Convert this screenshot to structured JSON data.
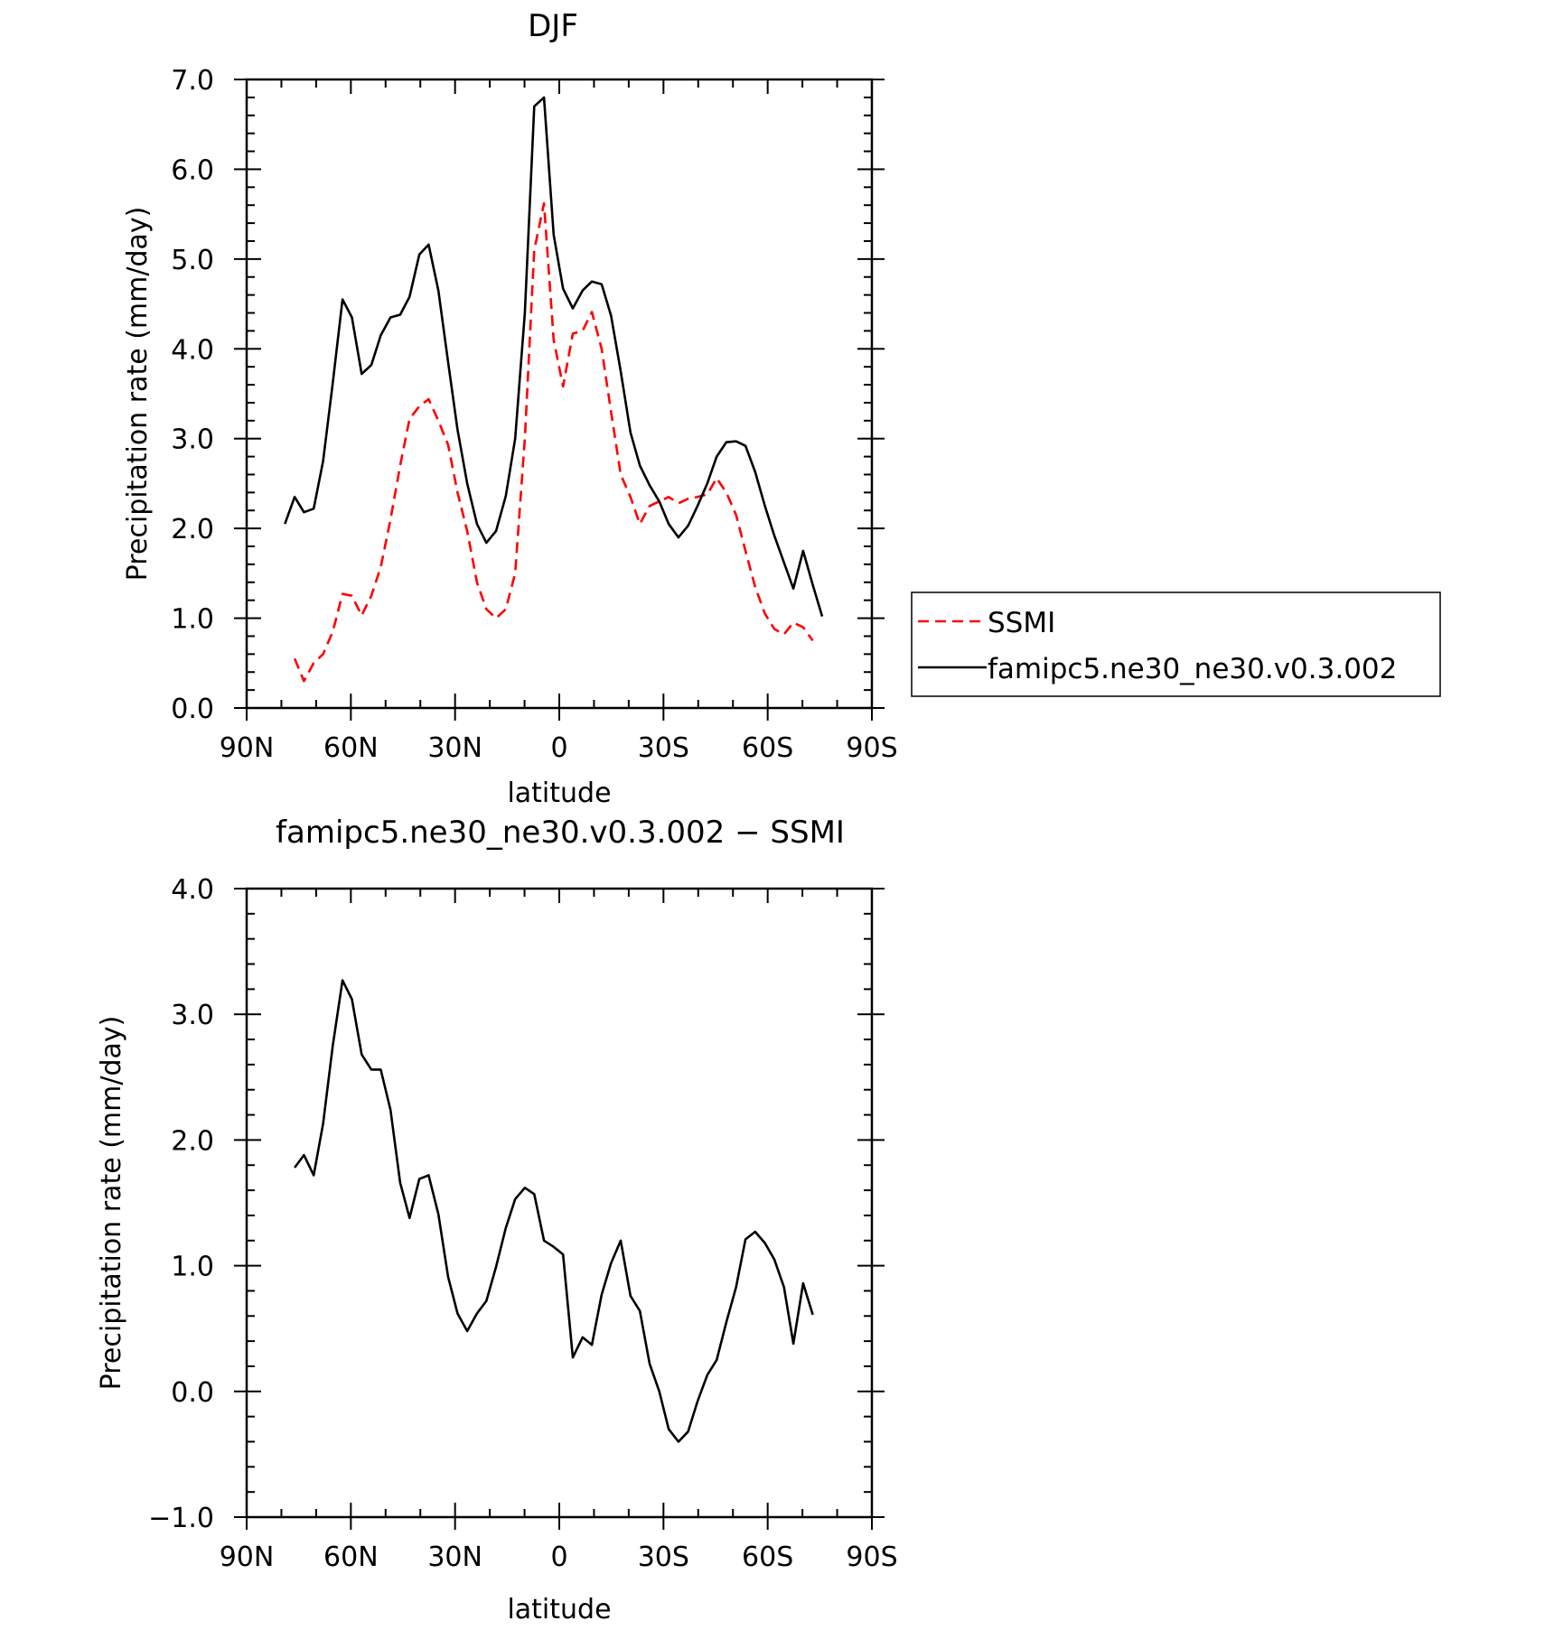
{
  "chart_data": [
    {
      "type": "line",
      "title": "DJF",
      "xlabel": "latitude",
      "ylabel": "Precipitation rate (mm/day)",
      "xlim": [
        90,
        -90
      ],
      "ylim": [
        0,
        7
      ],
      "xticks": [
        90,
        60,
        30,
        0,
        -30,
        -60,
        -90
      ],
      "xtick_labels": [
        "90N",
        "60N",
        "30N",
        "0",
        "30S",
        "60S",
        "90S"
      ],
      "yticks": [
        0,
        1,
        2,
        3,
        4,
        5,
        6,
        7
      ],
      "ytick_labels": [
        "0.0",
        "1.0",
        "2.0",
        "3.0",
        "4.0",
        "5.0",
        "6.0",
        "7.0"
      ],
      "grid": false,
      "legend_position": "right",
      "series": [
        {
          "name": "SSMI",
          "color": "#ff0000",
          "dash": "dashed",
          "x": [
            76.2,
            73.5,
            70.7,
            68.0,
            65.2,
            62.4,
            59.7,
            56.9,
            54.1,
            51.4,
            48.6,
            45.8,
            43.1,
            40.3,
            37.6,
            34.8,
            32.0,
            29.3,
            26.5,
            23.7,
            21.0,
            18.2,
            15.4,
            12.7,
            9.9,
            7.2,
            4.4,
            1.6,
            -1.1,
            -3.9,
            -6.7,
            -9.4,
            -12.2,
            -14.9,
            -17.7,
            -20.5,
            -23.2,
            -26.0,
            -28.8,
            -31.5,
            -34.3,
            -37.1,
            -39.8,
            -42.6,
            -45.3,
            -48.1,
            -50.9,
            -53.6,
            -56.4,
            -59.2,
            -61.9,
            -64.7,
            -67.4,
            -70.2,
            -73.0
          ],
          "y": [
            0.55,
            0.3,
            0.5,
            0.6,
            0.85,
            1.27,
            1.25,
            1.03,
            1.25,
            1.57,
            2.1,
            2.7,
            3.22,
            3.36,
            3.44,
            3.2,
            2.93,
            2.4,
            1.97,
            1.4,
            1.1,
            1.0,
            1.1,
            1.5,
            3.0,
            5.1,
            5.62,
            4.1,
            3.58,
            4.17,
            4.2,
            4.41,
            4.0,
            3.3,
            2.6,
            2.35,
            2.05,
            2.25,
            2.3,
            2.35,
            2.28,
            2.33,
            2.35,
            2.38,
            2.56,
            2.4,
            2.15,
            1.75,
            1.35,
            1.05,
            0.88,
            0.82,
            0.95,
            0.9,
            0.75
          ]
        },
        {
          "name": "famipc5.ne30_ne30.v0.3.002",
          "color": "#000000",
          "dash": "solid",
          "x": [
            79.0,
            76.2,
            73.5,
            70.7,
            68.0,
            65.2,
            62.4,
            59.7,
            56.9,
            54.1,
            51.4,
            48.6,
            45.8,
            43.1,
            40.3,
            37.6,
            34.8,
            32.0,
            29.3,
            26.5,
            23.7,
            21.0,
            18.2,
            15.4,
            12.7,
            9.9,
            7.2,
            4.4,
            1.6,
            -1.1,
            -3.9,
            -6.7,
            -9.4,
            -12.2,
            -14.9,
            -17.7,
            -20.5,
            -23.2,
            -26.0,
            -28.8,
            -31.5,
            -34.3,
            -37.1,
            -39.8,
            -42.6,
            -45.3,
            -48.1,
            -50.9,
            -53.6,
            -56.4,
            -59.2,
            -61.9,
            -64.7,
            -67.4,
            -70.2,
            -73.0,
            -75.7
          ],
          "y": [
            2.05,
            2.35,
            2.18,
            2.22,
            2.75,
            3.62,
            4.55,
            4.35,
            3.72,
            3.82,
            4.15,
            4.35,
            4.38,
            4.58,
            5.05,
            5.16,
            4.65,
            3.85,
            3.1,
            2.5,
            2.05,
            1.84,
            1.97,
            2.36,
            3.0,
            4.4,
            6.7,
            6.8,
            5.27,
            4.67,
            4.45,
            4.65,
            4.75,
            4.72,
            4.37,
            3.75,
            3.07,
            2.7,
            2.48,
            2.3,
            2.05,
            1.9,
            2.03,
            2.25,
            2.5,
            2.8,
            2.96,
            2.97,
            2.92,
            2.63,
            2.25,
            1.92,
            1.62,
            1.33,
            1.75,
            1.37,
            1.02
          ]
        }
      ]
    },
    {
      "type": "line",
      "title": "famipc5.ne30_ne30.v0.3.002 − SSMI",
      "xlabel": "latitude",
      "ylabel": "Precipitation rate (mm/day)",
      "xlim": [
        90,
        -90
      ],
      "ylim": [
        -1,
        4
      ],
      "xticks": [
        90,
        60,
        30,
        0,
        -30,
        -60,
        -90
      ],
      "xtick_labels": [
        "90N",
        "60N",
        "30N",
        "0",
        "30S",
        "60S",
        "90S"
      ],
      "yticks": [
        -1,
        0,
        1,
        2,
        3,
        4
      ],
      "ytick_labels": [
        "−1.0",
        "0.0",
        "1.0",
        "2.0",
        "3.0",
        "4.0"
      ],
      "grid": false,
      "series": [
        {
          "color": "#000000",
          "dash": "solid",
          "x": [
            76.2,
            73.5,
            70.7,
            68.0,
            65.2,
            62.4,
            59.7,
            56.9,
            54.1,
            51.4,
            48.6,
            45.8,
            43.1,
            40.3,
            37.6,
            34.8,
            32.0,
            29.3,
            26.5,
            23.7,
            21.0,
            18.2,
            15.4,
            12.7,
            9.9,
            7.2,
            4.4,
            1.6,
            -1.1,
            -3.9,
            -6.7,
            -9.4,
            -12.2,
            -14.9,
            -17.7,
            -20.5,
            -23.2,
            -26.0,
            -28.8,
            -31.5,
            -34.3,
            -37.1,
            -39.8,
            -42.6,
            -45.3,
            -48.1,
            -50.9,
            -53.6,
            -56.4,
            -59.2,
            -61.9,
            -64.7,
            -67.4,
            -70.2,
            -73.0
          ],
          "y": [
            1.78,
            1.88,
            1.72,
            2.13,
            2.75,
            3.27,
            3.12,
            2.68,
            2.56,
            2.56,
            2.24,
            1.66,
            1.38,
            1.69,
            1.72,
            1.41,
            0.91,
            0.62,
            0.48,
            0.62,
            0.72,
            0.99,
            1.3,
            1.53,
            1.62,
            1.57,
            1.2,
            1.15,
            1.09,
            0.27,
            0.43,
            0.37,
            0.77,
            1.02,
            1.2,
            0.76,
            0.64,
            0.22,
            0.0,
            -0.3,
            -0.4,
            -0.32,
            -0.08,
            0.13,
            0.25,
            0.55,
            0.83,
            1.21,
            1.27,
            1.18,
            1.05,
            0.83,
            0.38,
            0.86,
            0.61
          ]
        }
      ]
    }
  ]
}
